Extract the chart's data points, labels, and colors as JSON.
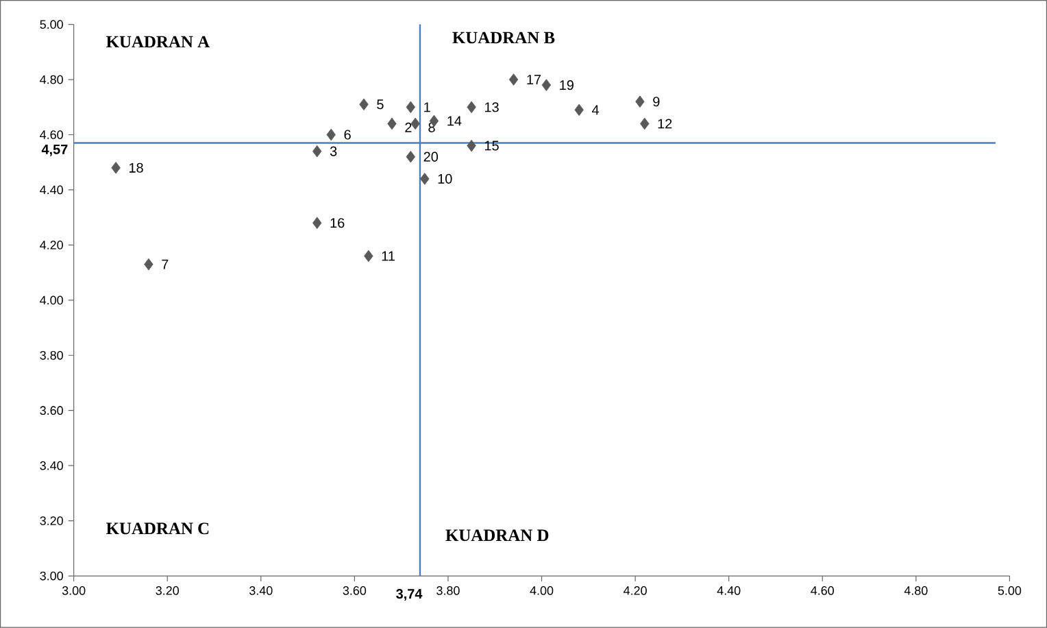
{
  "chart_data": {
    "type": "scatter",
    "x": [
      3.72,
      3.68,
      3.52,
      4.08,
      3.62,
      3.55,
      3.16,
      3.73,
      4.21,
      3.75,
      3.63,
      4.22,
      3.85,
      3.77,
      3.85,
      3.52,
      3.94,
      3.09,
      4.01,
      3.72
    ],
    "values": [
      4.7,
      4.64,
      4.54,
      4.69,
      4.71,
      4.6,
      4.13,
      4.64,
      4.72,
      4.44,
      4.16,
      4.64,
      4.7,
      4.65,
      4.56,
      4.28,
      4.8,
      4.48,
      4.78,
      4.52
    ],
    "color": "#595959",
    "marker": "diamond",
    "xlim": [
      3,
      5
    ],
    "ylim": [
      3,
      5
    ],
    "xticks": [
      {
        "value": 3,
        "label": "3.00"
      },
      {
        "value": 3.2,
        "label": "3.20"
      },
      {
        "value": 3.4,
        "label": "3.40"
      },
      {
        "value": 3.6,
        "label": "3.60"
      },
      {
        "value": 3.8,
        "label": "3.80"
      },
      {
        "value": 4,
        "label": "4.00"
      },
      {
        "value": 4.2,
        "label": "4.20"
      },
      {
        "value": 4.4,
        "label": "4.40"
      },
      {
        "value": 4.6,
        "label": "4.60"
      },
      {
        "value": 4.8,
        "label": "4.80"
      },
      {
        "value": 5,
        "label": "5.00"
      }
    ],
    "yticks": [
      {
        "value": 3,
        "label": "3.00"
      },
      {
        "value": 3.2,
        "label": "3.20"
      },
      {
        "value": 3.4,
        "label": "3.40"
      },
      {
        "value": 3.6,
        "label": "3.60"
      },
      {
        "value": 3.8,
        "label": "3.80"
      },
      {
        "value": 4,
        "label": "4.00"
      },
      {
        "value": 4.2,
        "label": "4.20"
      },
      {
        "value": 4.4,
        "label": "4.40"
      },
      {
        "value": 4.6,
        "label": "4.60"
      },
      {
        "value": 4.8,
        "label": "4.80"
      },
      {
        "value": 5,
        "label": "5.00"
      }
    ],
    "ref_lines": [
      {
        "axis": "x",
        "value": 3.74,
        "label": "3,74",
        "color": "#4a7ebb"
      },
      {
        "axis": "y",
        "value": 4.57,
        "label": "4,57",
        "color": "#4a7ebb"
      }
    ],
    "annotations": [
      "KUADRAN A",
      "KUADRAN B",
      "KUADRAN C",
      "KUADRAN D",
      {
        "text": "1",
        "x": 3.72,
        "y": 4.7
      },
      {
        "text": "2",
        "x": 3.68,
        "y": 4.64
      },
      {
        "text": "3",
        "x": 3.52,
        "y": 4.54
      },
      {
        "text": "4",
        "x": 4.08,
        "y": 4.69
      },
      {
        "text": "5",
        "x": 3.62,
        "y": 4.71
      },
      {
        "text": "6",
        "x": 3.55,
        "y": 4.6
      },
      {
        "text": "7",
        "x": 3.16,
        "y": 4.13
      },
      {
        "text": "8",
        "x": 3.73,
        "y": 4.64
      },
      {
        "text": "9",
        "x": 4.21,
        "y": 4.72
      },
      {
        "text": "10",
        "x": 3.75,
        "y": 4.44
      },
      {
        "text": "11",
        "x": 3.63,
        "y": 4.16
      },
      {
        "text": "12",
        "x": 4.22,
        "y": 4.64
      },
      {
        "text": "13",
        "x": 3.85,
        "y": 4.7
      },
      {
        "text": "14",
        "x": 3.77,
        "y": 4.65
      },
      {
        "text": "15",
        "x": 3.85,
        "y": 4.56
      },
      {
        "text": "16",
        "x": 3.52,
        "y": 4.28
      },
      {
        "text": "17",
        "x": 3.94,
        "y": 4.8
      },
      {
        "text": "18",
        "x": 3.09,
        "y": 4.48
      },
      {
        "text": "19",
        "x": 4.01,
        "y": 4.78
      },
      {
        "text": "20",
        "x": 3.72,
        "y": 4.52
      }
    ]
  }
}
